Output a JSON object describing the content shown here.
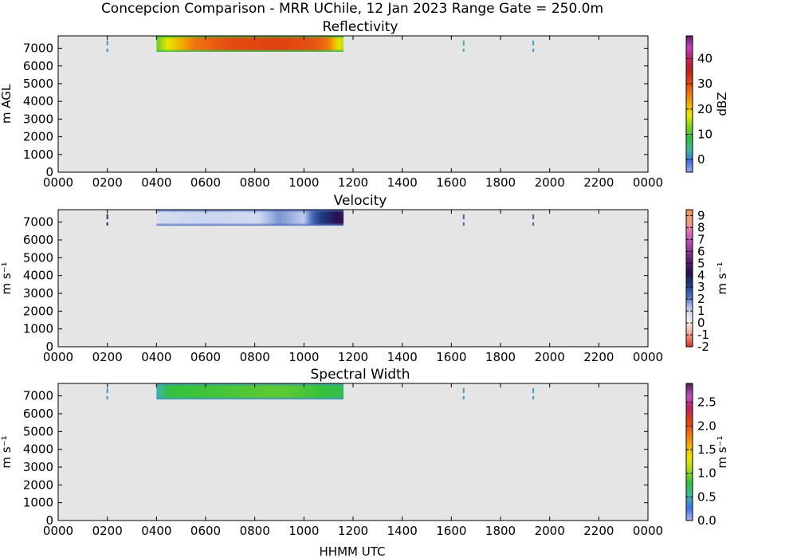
{
  "figure": {
    "title": "Concepcion Comparison - MRR UChile, 12 Jan 2023 Range Gate = 250.0m",
    "xlabel": "HHMM UTC",
    "background_color": "#e5e5e5",
    "data_window": {
      "start": "0400",
      "end": "1130",
      "base_m": 6800,
      "top_m": 7700
    }
  },
  "chart_data": [
    {
      "type": "heatmap",
      "title": "Reflectivity",
      "ylabel": "m AGL",
      "xlim": [
        "0000",
        "0000"
      ],
      "x_ticks": [
        "0000",
        "0200",
        "0400",
        "0600",
        "0800",
        "1000",
        "1200",
        "1400",
        "1600",
        "1800",
        "2000",
        "2200",
        "0000"
      ],
      "ylim": [
        0,
        7700
      ],
      "y_ticks": [
        "0",
        "1000",
        "2000",
        "3000",
        "4000",
        "5000",
        "6000",
        "7000"
      ],
      "colorbar": {
        "label": "dBZ",
        "range": [
          -5,
          49
        ],
        "ticks": [
          "0",
          "10",
          "20",
          "30",
          "40"
        ],
        "tick_values": [
          0,
          10,
          20,
          30,
          40
        ],
        "colors": [
          "#a0a8f0",
          "#4070e8",
          "#40b8a0",
          "#30c040",
          "#80d020",
          "#e8e800",
          "#f0b000",
          "#f07010",
          "#e04010",
          "#c02020",
          "#c02060",
          "#c040c0",
          "#602060"
        ]
      },
      "profile": [
        {
          "t": "0400",
          "v": 12
        },
        {
          "t": "0430",
          "v": 18
        },
        {
          "t": "0530",
          "v": 26
        },
        {
          "t": "0700",
          "v": 30
        },
        {
          "t": "0900",
          "v": 31
        },
        {
          "t": "1030",
          "v": 29
        },
        {
          "t": "1100",
          "v": 26
        },
        {
          "t": "1130",
          "v": 16
        }
      ],
      "edge_value": 8,
      "isolated_returns": [
        {
          "t": "0200",
          "v": 2
        },
        {
          "t": "1630",
          "v": 3
        },
        {
          "t": "1920",
          "v": 2
        }
      ]
    },
    {
      "type": "heatmap",
      "title": "Velocity",
      "ylabel": "m s⁻¹",
      "xlim": [
        "0000",
        "0000"
      ],
      "x_ticks": [
        "0000",
        "0200",
        "0400",
        "0600",
        "0800",
        "1000",
        "1200",
        "1400",
        "1600",
        "1800",
        "2000",
        "2200",
        "0000"
      ],
      "ylim": [
        0,
        7700
      ],
      "y_ticks": [
        "0",
        "1000",
        "2000",
        "3000",
        "4000",
        "5000",
        "6000",
        "7000"
      ],
      "colorbar": {
        "label": "m s⁻¹",
        "range": [
          -2,
          9.5
        ],
        "ticks": [
          "-2",
          "-1",
          "0",
          "1",
          "2",
          "3",
          "4",
          "5",
          "6",
          "7",
          "8",
          "9"
        ],
        "tick_values": [
          -2,
          -1,
          0,
          1,
          2,
          3,
          4,
          5,
          6,
          7,
          8,
          9
        ],
        "colors": [
          "#d83020",
          "#f0a090",
          "#f8f0f0",
          "#c8d4f0",
          "#5070c0",
          "#203a80",
          "#281050",
          "#602070",
          "#a040a0",
          "#d860c0",
          "#f0a080",
          "#f09050"
        ]
      },
      "profile": [
        {
          "t": "0400",
          "v": 0.8
        },
        {
          "t": "0600",
          "v": 1.1
        },
        {
          "t": "0800",
          "v": 0.9
        },
        {
          "t": "0900",
          "v": 1.8
        },
        {
          "t": "1000",
          "v": 1.2
        },
        {
          "t": "1030",
          "v": 2.8
        },
        {
          "t": "1130",
          "v": 4.5
        }
      ],
      "edge_value": 2.2,
      "isolated_returns": [
        {
          "t": "0200",
          "v": 3.5
        },
        {
          "t": "1630",
          "v": 2.5
        },
        {
          "t": "1920",
          "v": 2.5
        }
      ]
    },
    {
      "type": "heatmap",
      "title": "Spectral Width",
      "ylabel": "m s⁻¹",
      "xlim": [
        "0000",
        "0000"
      ],
      "x_ticks": [
        "0000",
        "0200",
        "0400",
        "0600",
        "0800",
        "1000",
        "1200",
        "1400",
        "1600",
        "1800",
        "2000",
        "2200",
        "0000"
      ],
      "ylim": [
        0,
        7700
      ],
      "y_ticks": [
        "0",
        "1000",
        "2000",
        "3000",
        "4000",
        "5000",
        "6000",
        "7000"
      ],
      "colorbar": {
        "label": "m s⁻¹",
        "range": [
          0,
          2.9
        ],
        "ticks": [
          "0.0",
          "0.5",
          "1.0",
          "1.5",
          "2.0",
          "2.5"
        ],
        "tick_values": [
          0,
          0.5,
          1.0,
          1.5,
          2.0,
          2.5
        ],
        "colors": [
          "#a8b8f0",
          "#4070e8",
          "#40b8a0",
          "#30c040",
          "#a0d820",
          "#e8e800",
          "#f0b000",
          "#f07010",
          "#e04010",
          "#c02060",
          "#c050c0",
          "#502050"
        ]
      },
      "profile": [
        {
          "t": "0400",
          "v": 0.45
        },
        {
          "t": "0430",
          "v": 0.8
        },
        {
          "t": "0700",
          "v": 0.85
        },
        {
          "t": "0900",
          "v": 0.9
        },
        {
          "t": "1100",
          "v": 0.8
        },
        {
          "t": "1130",
          "v": 0.75
        }
      ],
      "edge_value": 0.4,
      "isolated_returns": [
        {
          "t": "0200",
          "v": 0.4
        },
        {
          "t": "1630",
          "v": 0.4
        },
        {
          "t": "1920",
          "v": 0.4
        }
      ]
    }
  ]
}
